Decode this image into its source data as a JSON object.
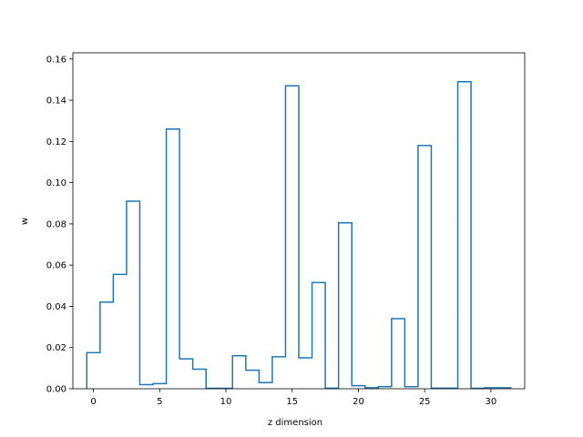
{
  "chart_data": {
    "type": "line",
    "style": "step",
    "xlabel": "z dimension",
    "ylabel": "w",
    "title": "",
    "xlim": [
      -1.55,
      32.55
    ],
    "ylim": [
      0,
      0.163
    ],
    "grid": false,
    "legend": "none",
    "color": "#1f77b4",
    "xticks": [
      {
        "value": 0,
        "label": "0"
      },
      {
        "value": 5,
        "label": "5"
      },
      {
        "value": 10,
        "label": "10"
      },
      {
        "value": 15,
        "label": "15"
      },
      {
        "value": 20,
        "label": "20"
      },
      {
        "value": 25,
        "label": "25"
      },
      {
        "value": 30,
        "label": "30"
      }
    ],
    "yticks": [
      {
        "value": 0,
        "label": "0.00"
      },
      {
        "value": 0.02,
        "label": "0.02"
      },
      {
        "value": 0.04,
        "label": "0.04"
      },
      {
        "value": 0.06,
        "label": "0.06"
      },
      {
        "value": 0.08,
        "label": "0.08"
      },
      {
        "value": 0.1,
        "label": "0.10"
      },
      {
        "value": 0.12,
        "label": "0.12"
      },
      {
        "value": 0.14,
        "label": "0.14"
      },
      {
        "value": 0.16,
        "label": "0.16"
      }
    ],
    "x": [
      0,
      1,
      2,
      3,
      4,
      5,
      6,
      7,
      8,
      9,
      10,
      11,
      12,
      13,
      14,
      15,
      16,
      17,
      18,
      19,
      20,
      21,
      22,
      23,
      24,
      25,
      26,
      27,
      28,
      29,
      30,
      31
    ],
    "values": [
      0.0175,
      0.042,
      0.0555,
      0.091,
      0.002,
      0.0025,
      0.126,
      0.0145,
      0.0095,
      0.0002,
      0.0002,
      0.016,
      0.009,
      0.003,
      0.0155,
      0.147,
      0.015,
      0.0515,
      0.0003,
      0.0805,
      0.0015,
      0.0005,
      0.001,
      0.034,
      0.001,
      0.118,
      0.0003,
      0.0003,
      0.149,
      0.0002,
      0.0005,
      0.0005
    ]
  }
}
